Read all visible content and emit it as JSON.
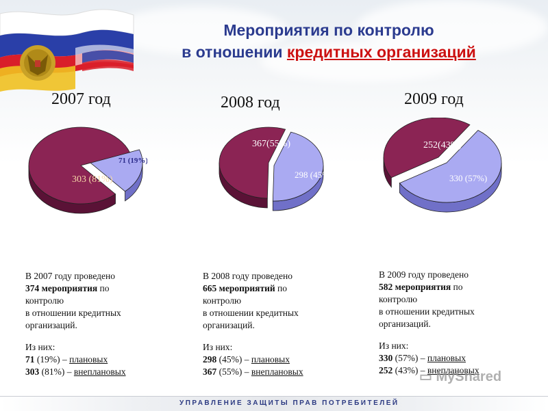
{
  "header": {
    "title_line1": "Мероприятия по контролю",
    "title_line2_plain": "в отношении ",
    "title_line2_red": "кредитных организаций"
  },
  "chart_data": [
    {
      "type": "pie",
      "title": "2007 год",
      "slices": [
        {
          "name": "плановых",
          "value": 71,
          "label": "71 (19%)",
          "color": "#aaaaf2"
        },
        {
          "name": "внеплановых",
          "value": 303,
          "label": "303 (81%)",
          "color": "#8b2454"
        }
      ]
    },
    {
      "type": "pie",
      "title": "2008 год",
      "slices": [
        {
          "name": "плановых",
          "value": 298,
          "label": "298 (45%)",
          "color": "#aaaaf2"
        },
        {
          "name": "внеплановых",
          "value": 367,
          "label": "367(55%)",
          "color": "#8b2454"
        }
      ]
    },
    {
      "type": "pie",
      "title": "2009 год",
      "slices": [
        {
          "name": "плановых",
          "value": 330,
          "label": "330 (57%)",
          "color": "#aaaaf2"
        },
        {
          "name": "внеплановых",
          "value": 252,
          "label": "252(43%)",
          "color": "#8b2454"
        }
      ]
    }
  ],
  "descriptions": [
    {
      "line1": "В 2007 году проведено",
      "count": "374 мероприятия",
      "count_rest": " по",
      "line3": "контролю",
      "line4": "в отношении кредитных",
      "line5": "организаций.",
      "of_them": "Из них:",
      "planned_num": "71",
      "planned_pct": " (19%) – ",
      "planned_word": "плановых",
      "unplanned_num": "303",
      "unplanned_pct": " (81%) – ",
      "unplanned_word": "внеплановых"
    },
    {
      "line1": "В 2008 году проведено",
      "count": "665 мероприятий",
      "count_rest": " по",
      "line3": "контролю",
      "line4": "в отношении кредитных",
      "line5": "организаций.",
      "of_them": "Из них:",
      "planned_num": "298",
      "planned_pct": " (45%) – ",
      "planned_word": "плановых",
      "unplanned_num": "367",
      "unplanned_pct": " (55%) – ",
      "unplanned_word": "внеплановых"
    },
    {
      "line1": "В 2009 году проведено",
      "count": "582 мероприятия",
      "count_rest": " по",
      "line3": "контролю",
      "line4": "в отношении кредитных",
      "line5": "организаций.",
      "of_them": "Из них:",
      "planned_num": "330",
      "planned_pct": " (57%) – ",
      "planned_word": "плановых",
      "unplanned_num": "252",
      "unplanned_pct": " (43%) – ",
      "unplanned_word": "внеплановых"
    }
  ],
  "footer": {
    "text": "УПРАВЛЕНИЕ ЗАЩИТЫ ПРАВ ПОТРЕБИТЕЛЕЙ"
  },
  "watermark": {
    "text": "MyShared"
  },
  "colors": {
    "planned": "#aaaaf2",
    "planned_side": "#7070c8",
    "unplanned": "#8b2454",
    "unplanned_side": "#5a1236",
    "title_blue": "#2b3b8f",
    "title_red": "#cc1111"
  }
}
